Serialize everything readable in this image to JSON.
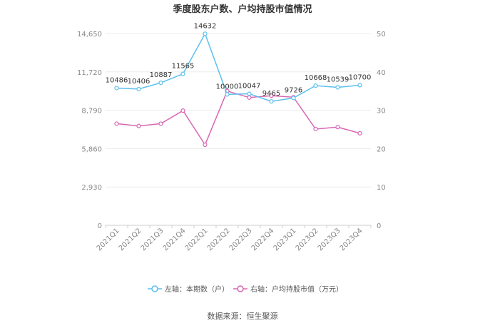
{
  "chart_data": {
    "type": "line",
    "title": "季度股东户数、户均持股市值情况",
    "categories": [
      "2021Q1",
      "2021Q2",
      "2021Q3",
      "2021Q4",
      "2022Q1",
      "2022Q2",
      "2022Q3",
      "2022Q4",
      "2023Q1",
      "2023Q2",
      "2023Q3",
      "2023Q4"
    ],
    "left_axis": {
      "ticks": [
        "0",
        "2,930",
        "5,860",
        "8,790",
        "11,720",
        "14,650"
      ],
      "ylim": [
        0,
        14650
      ]
    },
    "right_axis": {
      "ticks": [
        "0",
        "10",
        "20",
        "30",
        "40",
        "50"
      ],
      "ylim": [
        0,
        50
      ]
    },
    "series": [
      {
        "name": "左轴：本期数（户）",
        "axis": "left",
        "color": "#5bc0ef",
        "values": [
          10486,
          10406,
          10887,
          11565,
          14632,
          10000,
          10047,
          9465,
          9726,
          10668,
          10539,
          10700
        ],
        "labels": [
          "10486",
          "10406",
          "10887",
          "11565",
          "14632",
          "10000",
          "10047",
          "9465",
          "9726",
          "10668",
          "10539",
          "10700"
        ]
      },
      {
        "name": "右轴：户均持股市值（万元）",
        "axis": "right",
        "color": "#d966b3",
        "values": [
          26.5,
          25.9,
          26.5,
          29.9,
          21.0,
          35.0,
          33.3,
          33.8,
          33.4,
          25.1,
          25.6,
          24.0
        ]
      }
    ],
    "grid": true,
    "legend": "bottom"
  },
  "source": "数据来源：恒生聚源"
}
